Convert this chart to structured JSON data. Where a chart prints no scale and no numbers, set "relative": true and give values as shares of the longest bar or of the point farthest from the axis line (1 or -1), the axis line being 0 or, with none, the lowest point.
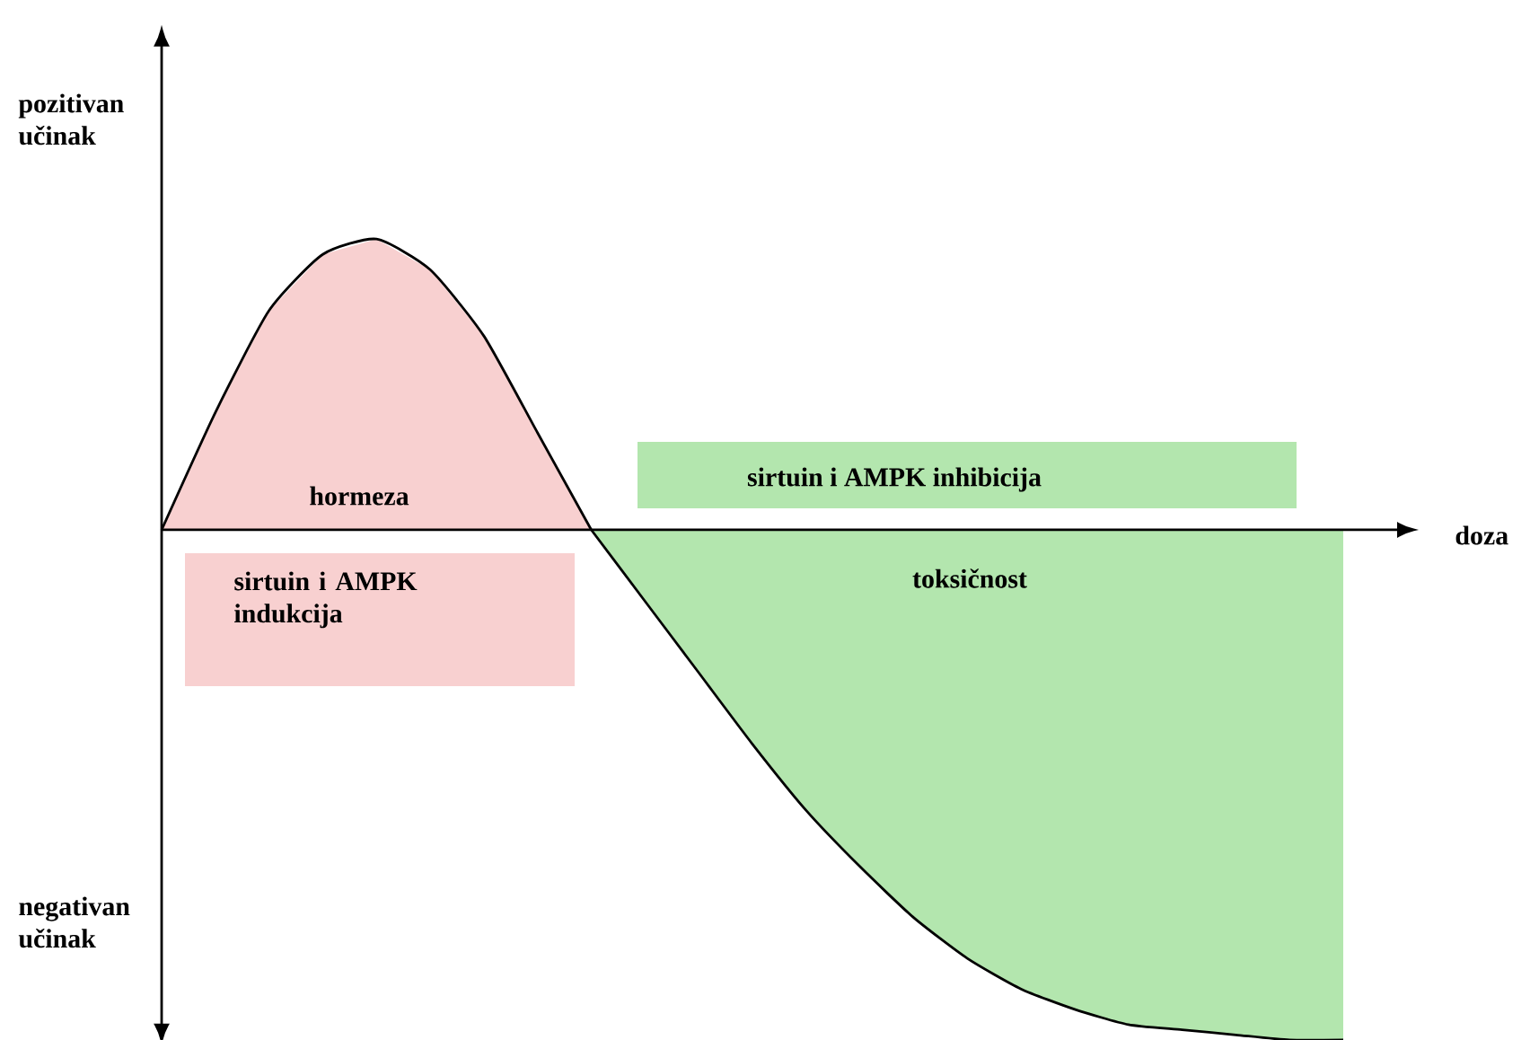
{
  "chart_data": {
    "type": "area",
    "relative": true,
    "xlabel": "doza",
    "ylabel": "pozitivan učinak",
    "categories": [
      null,
      null,
      null,
      null,
      null,
      null,
      null,
      null,
      null,
      null,
      null,
      null,
      null,
      null,
      null,
      null,
      null,
      null,
      null,
      null,
      null,
      null,
      null
    ],
    "series": [
      {
        "color": "#f8d0d0",
        "values": [
          0,
          0.23,
          0.43,
          0.54,
          0.57,
          0.51,
          0.38,
          0.19,
          0,
          null,
          null,
          null,
          null,
          null,
          null,
          null,
          null,
          null,
          null,
          null,
          null,
          null,
          null
        ]
      },
      {
        "color": "#b3e6ae",
        "values": [
          null,
          null,
          null,
          null,
          null,
          null,
          null,
          null,
          0,
          -0.14,
          -0.28,
          -0.42,
          -0.55,
          -0.66,
          -0.76,
          -0.84,
          -0.9,
          -0.94,
          -0.97,
          -0.98,
          -0.99,
          -1,
          -1
        ]
      }
    ],
    "annotations": [
      "hormeza",
      "sirtuin i AMPK indukcija",
      "sirtuin i AMPK inhibicija",
      "toksičnost",
      "negativan učinak"
    ]
  }
}
